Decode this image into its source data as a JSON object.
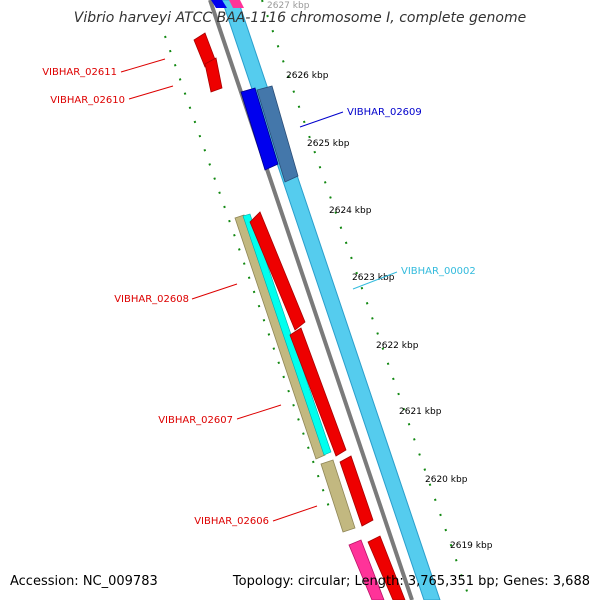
{
  "title": "Vibrio harveyi ATCC BAA-1116 chromosome I, complete genome",
  "footer": {
    "accession": "Accession: NC_009783",
    "summary": "Topology: circular; Length: 3,765,351 bp; Genes: 3,688"
  },
  "ticks": [
    "2627 kbp",
    "2626 kbp",
    "2625 kbp",
    "2624 kbp",
    "2623 kbp",
    "2622 kbp",
    "2621 kbp",
    "2620 kbp",
    "2619 kbp"
  ],
  "gene_labels": {
    "g02611": "VIBHAR_02611",
    "g02610": "VIBHAR_02610",
    "g02609": "VIBHAR_02609",
    "g00002": "VIBHAR_00002",
    "g02608": "VIBHAR_02608",
    "g02607": "VIBHAR_02607",
    "g02606": "VIBHAR_02606"
  },
  "colors": {
    "backbone": "#55ccee",
    "backbone_dark": "#7a7a7a",
    "gene_red": "#ff0000",
    "gene_blue": "#0000ee",
    "gene_steel": "#4477aa",
    "gene_khaki": "#c2b880",
    "gene_cyan": "#00ffee",
    "gene_magenta": "#ff3399",
    "tick_green": "#118811",
    "label_red": "#dd0000",
    "label_blue": "#0000cc",
    "label_cyan": "#33bbdd"
  }
}
